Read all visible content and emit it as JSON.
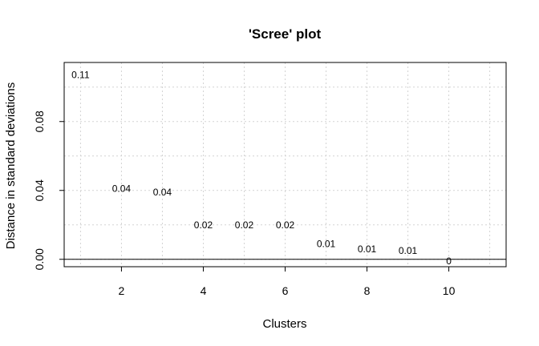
{
  "chart_data": {
    "type": "scatter",
    "title": "'Scree' plot",
    "xlabel": "Clusters",
    "ylabel": "Distance in standard deviations",
    "x": [
      1,
      2,
      3,
      4,
      5,
      6,
      7,
      8,
      9,
      10
    ],
    "y": [
      0.107,
      0.041,
      0.039,
      0.02,
      0.02,
      0.02,
      0.009,
      0.006,
      0.005,
      -0.001
    ],
    "point_labels": [
      "0.11",
      "0.04",
      "0.04",
      "0.02",
      "0.02",
      "0.02",
      "0.01",
      "0.01",
      "0.01",
      "0"
    ],
    "xlim": [
      0.6,
      11.4
    ],
    "ylim": [
      -0.0043,
      0.1143
    ],
    "x_ticks": [
      2,
      4,
      6,
      8,
      10
    ],
    "x_tick_labels": [
      "2",
      "4",
      "6",
      "8",
      "10"
    ],
    "y_ticks": [
      0,
      0.04,
      0.08
    ],
    "y_tick_labels": [
      "0.00",
      "0.04",
      "0.08"
    ],
    "x_grid": [
      1,
      2,
      3,
      4,
      5,
      6,
      7,
      8,
      9,
      10,
      11
    ],
    "y_grid": [
      0,
      0.02,
      0.04,
      0.06,
      0.08,
      0.1
    ],
    "grid": true,
    "hline_at": 0
  }
}
